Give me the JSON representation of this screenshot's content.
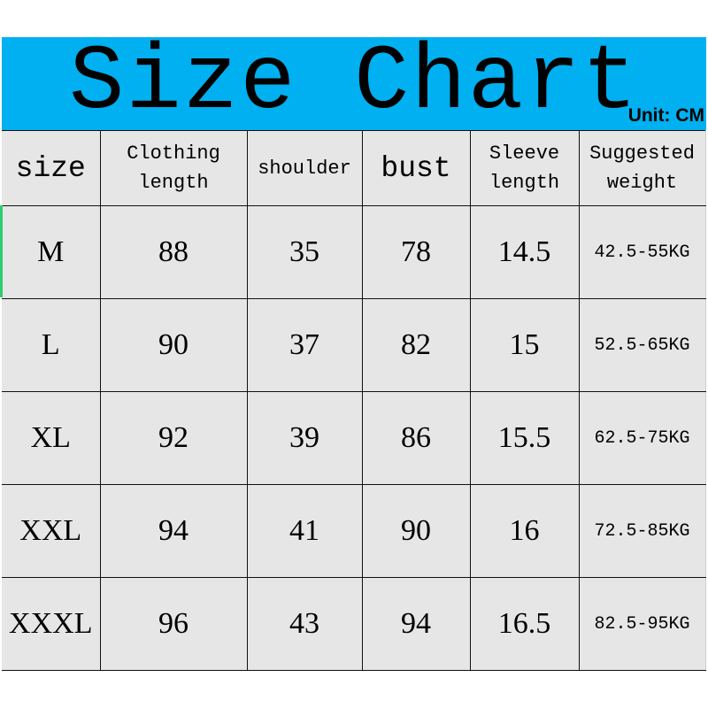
{
  "banner": {
    "title": "Size Chart",
    "unit": "Unit: CM",
    "color": "#00b0f0"
  },
  "table": {
    "headers": [
      "size",
      "Clothing length",
      "shoulder",
      "bust",
      "Sleeve length",
      "Suggested weight"
    ],
    "rows": [
      [
        "M",
        "88",
        "35",
        "78",
        "14.5",
        "42.5-55KG"
      ],
      [
        "L",
        "90",
        "37",
        "82",
        "15",
        "52.5-65KG"
      ],
      [
        "XL",
        "92",
        "39",
        "86",
        "15.5",
        "62.5-75KG"
      ],
      [
        "XXL",
        "94",
        "41",
        "90",
        "16",
        "72.5-85KG"
      ],
      [
        "XXXL",
        "96",
        "43",
        "94",
        "16.5",
        "82.5-95KG"
      ]
    ]
  }
}
